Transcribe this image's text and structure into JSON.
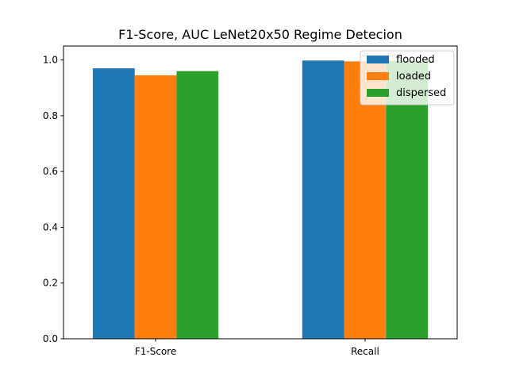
{
  "chart_data": {
    "type": "bar",
    "title": "F1-Score, AUC LeNet20x50 Regime Detecion",
    "xlabel": "",
    "ylabel": "",
    "categories": [
      "F1-Score",
      "Recall"
    ],
    "series": [
      {
        "name": "flooded",
        "values": [
          0.97,
          0.998
        ],
        "color": "#1f77b4"
      },
      {
        "name": "loaded",
        "values": [
          0.945,
          0.995
        ],
        "color": "#ff7f0e"
      },
      {
        "name": "dispersed",
        "values": [
          0.96,
          0.997
        ],
        "color": "#2ca02c"
      }
    ],
    "ylim": [
      0,
      1.05
    ],
    "yticks": [
      0.0,
      0.2,
      0.4,
      0.6,
      0.8,
      1.0
    ],
    "ytick_labels": [
      "0.0",
      "0.2",
      "0.4",
      "0.6",
      "0.8",
      "1.0"
    ],
    "legend_position": "top-right",
    "grid": false
  }
}
